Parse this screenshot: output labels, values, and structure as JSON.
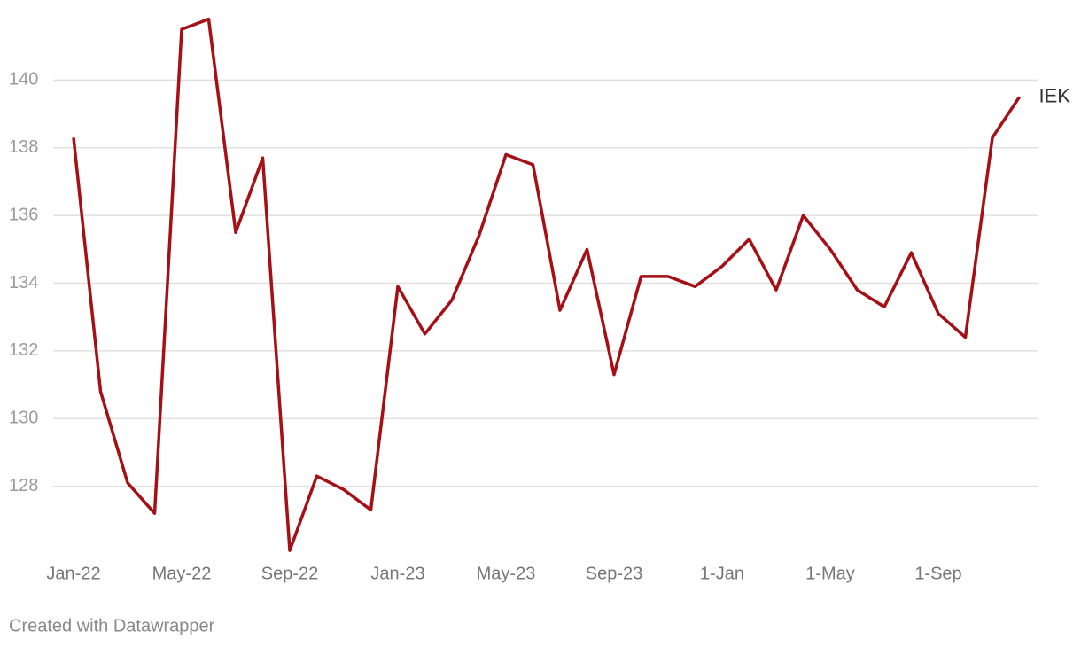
{
  "chart_data": {
    "type": "line",
    "categories": [
      "Jan-22",
      null,
      null,
      null,
      "May-22",
      null,
      null,
      null,
      "Sep-22",
      null,
      null,
      null,
      "Jan-23",
      null,
      null,
      null,
      "May-23",
      null,
      null,
      null,
      "Sep-23",
      null,
      null,
      null,
      "1-Jan",
      null,
      null,
      null,
      "1-May",
      null,
      null,
      null,
      "1-Sep",
      null,
      null,
      null
    ],
    "series": [
      {
        "name": "IEK",
        "color": "#a50f15",
        "values": [
          138.3,
          130.8,
          128.1,
          127.2,
          141.5,
          141.8,
          135.5,
          137.7,
          126.1,
          128.3,
          127.9,
          127.3,
          133.9,
          132.5,
          133.5,
          135.4,
          137.8,
          137.5,
          133.2,
          135.0,
          131.3,
          134.2,
          134.2,
          133.9,
          134.5,
          135.3,
          133.8,
          136.0,
          135.0,
          133.8,
          133.3,
          134.9,
          133.1,
          132.4,
          138.3,
          139.5
        ]
      }
    ],
    "ylim": [
      126,
      142
    ],
    "yticks": [
      128,
      130,
      132,
      134,
      136,
      138,
      140
    ],
    "grid": true,
    "source": "Created with Datawrapper"
  }
}
